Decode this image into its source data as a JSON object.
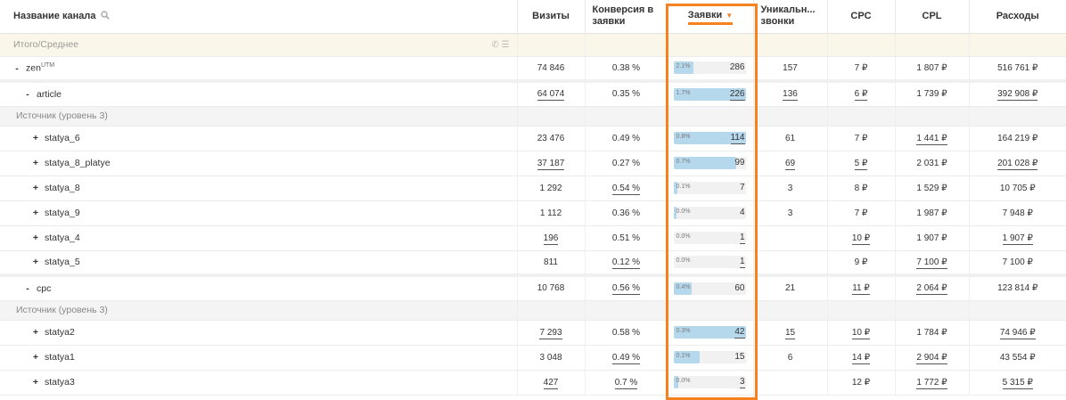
{
  "header": {
    "name": "Название канала",
    "visits": "Визиты",
    "conversion": "Конверсия в заявки",
    "requests": "Заявки",
    "calls": "Уникальн... звонки",
    "cpc": "CPC",
    "cpl": "CPL",
    "cost": "Расходы"
  },
  "total_label": "Итого/Среднее",
  "section_label": "Источник (уровень 3)",
  "rows": [
    {
      "name": "zen",
      "sup": "UTM",
      "toggle": "-",
      "visits": "74 846",
      "conv": "0.38 %",
      "pct": "2.1%",
      "req": "286",
      "fill": 0.28,
      "calls": "157",
      "cpc": "7 ₽",
      "cpl": "1 807 ₽",
      "cost": "516 761 ₽"
    },
    {
      "name": "article",
      "toggle": "-",
      "visits": "64 074",
      "conv": "0.35 %",
      "pct": "1.7%",
      "req": "226",
      "fill": 1.0,
      "calls": "136",
      "cpc": "6 ₽",
      "cpl": "1 739 ₽",
      "cost": "392 908 ₽"
    },
    {
      "name": "statya_6",
      "toggle": "+",
      "visits": "23 476",
      "conv": "0.49 %",
      "pct": "0.8%",
      "req": "114",
      "fill": 1.0,
      "calls": "61",
      "cpc": "7 ₽",
      "cpl": "1 441 ₽",
      "cost": "164 219 ₽"
    },
    {
      "name": "statya_8_platye",
      "toggle": "+",
      "visits": "37 187",
      "conv": "0.27 %",
      "pct": "0.7%",
      "req": "99",
      "fill": 0.87,
      "calls": "69",
      "cpc": "5 ₽",
      "cpl": "2 031 ₽",
      "cost": "201 028 ₽"
    },
    {
      "name": "statya_8",
      "toggle": "+",
      "visits": "1 292",
      "conv": "0.54 %",
      "pct": "0.1%",
      "req": "7",
      "fill": 0.06,
      "calls": "3",
      "cpc": "8 ₽",
      "cpl": "1 529 ₽",
      "cost": "10 705 ₽"
    },
    {
      "name": "statya_9",
      "toggle": "+",
      "visits": "1 112",
      "conv": "0.36 %",
      "pct": "0.0%",
      "req": "4",
      "fill": 0.04,
      "calls": "3",
      "cpc": "7 ₽",
      "cpl": "1 987 ₽",
      "cost": "7 948 ₽"
    },
    {
      "name": "statya_4",
      "toggle": "+",
      "visits": "196",
      "conv": "0.51 %",
      "pct": "0.0%",
      "req": "1",
      "fill": 0.0,
      "calls": "",
      "cpc": "10 ₽",
      "cpl": "1 907 ₽",
      "cost": "1 907 ₽"
    },
    {
      "name": "statya_5",
      "toggle": "+",
      "visits": "811",
      "conv": "0.12 %",
      "pct": "0.0%",
      "req": "1",
      "fill": 0.0,
      "calls": "",
      "cpc": "9 ₽",
      "cpl": "7 100 ₽",
      "cost": "7 100 ₽"
    },
    {
      "name": "cpc",
      "toggle": "-",
      "visits": "10 768",
      "conv": "0.56 %",
      "pct": "0.4%",
      "req": "60",
      "fill": 0.25,
      "calls": "21",
      "cpc": "11 ₽",
      "cpl": "2 064 ₽",
      "cost": "123 814 ₽"
    },
    {
      "name": "statya2",
      "toggle": "+",
      "visits": "7 293",
      "conv": "0.58 %",
      "pct": "0.3%",
      "req": "42",
      "fill": 1.0,
      "calls": "15",
      "cpc": "10 ₽",
      "cpl": "1 784 ₽",
      "cost": "74 946 ₽"
    },
    {
      "name": "statya1",
      "toggle": "+",
      "visits": "3 048",
      "conv": "0.49 %",
      "pct": "0.1%",
      "req": "15",
      "fill": 0.36,
      "calls": "6",
      "cpc": "14 ₽",
      "cpl": "2 904 ₽",
      "cost": "43 554 ₽"
    },
    {
      "name": "statya3",
      "toggle": "+",
      "visits": "427",
      "conv": "0.7 %",
      "pct": "0.0%",
      "req": "3",
      "fill": 0.07,
      "calls": "",
      "cpc": "12 ₽",
      "cpl": "1 772 ₽",
      "cost": "5 315 ₽"
    }
  ]
}
